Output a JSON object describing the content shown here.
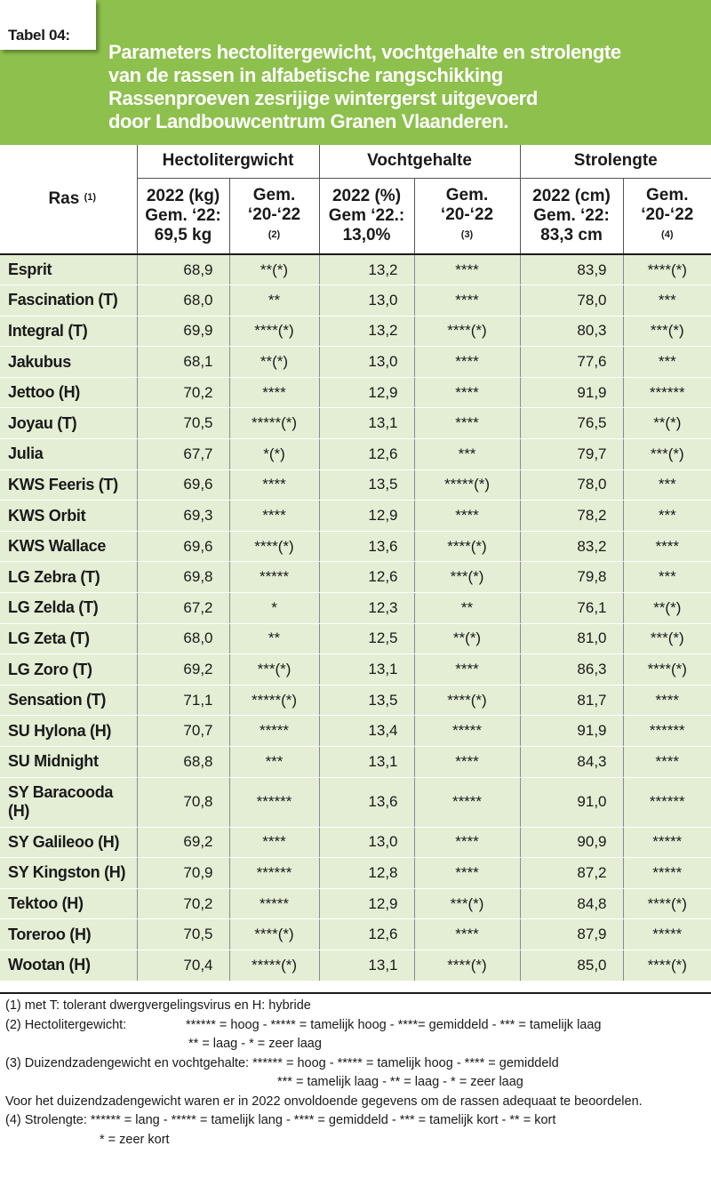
{
  "label": "Tabel 04:",
  "title_lines": [
    "Parameters hectolitergewicht, vochtgehalte en strolengte",
    "van de rassen in alfabetische rangschikking",
    "Rassenproeven zesrijige wintergerst uitgevoerd",
    "door Landbouwcentrum Granen Vlaanderen."
  ],
  "columns": {
    "ras": "Ras",
    "ras_note": "(1)",
    "group_hl": "Hectolitergwicht",
    "group_vocht": "Vochtgehalte",
    "group_stro": "Strolengte",
    "hl_2022_l1": "2022 (kg)",
    "hl_2022_l2": "Gem. ‘22:",
    "hl_2022_l3": "69,5 kg",
    "hl_gem_l1": "Gem.",
    "hl_gem_l2": "‘20-‘22",
    "hl_gem_note": "(2)",
    "v_2022_l1": "2022 (%)",
    "v_2022_l2": "Gem ‘22.:",
    "v_2022_l3": "13,0%",
    "v_gem_l1": "Gem.",
    "v_gem_l2": "‘20-‘22",
    "v_gem_note": "(3)",
    "s_2022_l1": "2022 (cm)",
    "s_2022_l2": "Gem. ‘22:",
    "s_2022_l3": "83,3 cm",
    "s_gem_l1": "Gem.",
    "s_gem_l2": "‘20-‘22",
    "s_gem_note": "(4)"
  },
  "rows": [
    {
      "name": "Esprit",
      "hl": "68,9",
      "hl_gem": "**(*)",
      "v": "13,2",
      "v_gem": "****",
      "s": "83,9",
      "s_gem": "****(*)"
    },
    {
      "name": "Fascination (T)",
      "hl": "68,0",
      "hl_gem": "**",
      "v": "13,0",
      "v_gem": "****",
      "s": "78,0",
      "s_gem": "***"
    },
    {
      "name": "Integral (T)",
      "hl": "69,9",
      "hl_gem": "****(*)",
      "v": "13,2",
      "v_gem": "****(*)",
      "s": "80,3",
      "s_gem": "***(*)"
    },
    {
      "name": "Jakubus",
      "hl": "68,1",
      "hl_gem": "**(*)",
      "v": "13,0",
      "v_gem": "****",
      "s": "77,6",
      "s_gem": "***"
    },
    {
      "name": "Jettoo (H)",
      "hl": "70,2",
      "hl_gem": "****",
      "v": "12,9",
      "v_gem": "****",
      "s": "91,9",
      "s_gem": "******"
    },
    {
      "name": "Joyau (T)",
      "hl": "70,5",
      "hl_gem": "*****(*)",
      "v": "13,1",
      "v_gem": "****",
      "s": "76,5",
      "s_gem": "**(*)"
    },
    {
      "name": "Julia",
      "hl": "67,7",
      "hl_gem": "*(*)",
      "v": "12,6",
      "v_gem": "***",
      "s": "79,7",
      "s_gem": "***(*)"
    },
    {
      "name": "KWS Feeris (T)",
      "hl": "69,6",
      "hl_gem": "****",
      "v": "13,5",
      "v_gem": "*****(*)",
      "s": "78,0",
      "s_gem": "***"
    },
    {
      "name": "KWS Orbit",
      "hl": "69,3",
      "hl_gem": "****",
      "v": "12,9",
      "v_gem": "****",
      "s": "78,2",
      "s_gem": "***"
    },
    {
      "name": "KWS Wallace",
      "hl": "69,6",
      "hl_gem": "****(*)",
      "v": "13,6",
      "v_gem": "****(*)",
      "s": "83,2",
      "s_gem": "****"
    },
    {
      "name": "LG Zebra (T)",
      "hl": "69,8",
      "hl_gem": "*****",
      "v": "12,6",
      "v_gem": "***(*)",
      "s": "79,8",
      "s_gem": "***"
    },
    {
      "name": "LG Zelda (T)",
      "hl": "67,2",
      "hl_gem": "*",
      "v": "12,3",
      "v_gem": "**",
      "s": "76,1",
      "s_gem": "**(*)"
    },
    {
      "name": "LG Zeta (T)",
      "hl": "68,0",
      "hl_gem": "**",
      "v": "12,5",
      "v_gem": "**(*)",
      "s": "81,0",
      "s_gem": "***(*)"
    },
    {
      "name": "LG Zoro (T)",
      "hl": "69,2",
      "hl_gem": "***(*)",
      "v": "13,1",
      "v_gem": "****",
      "s": "86,3",
      "s_gem": "****(*)"
    },
    {
      "name": "Sensation (T)",
      "hl": "71,1",
      "hl_gem": "*****(*)",
      "v": "13,5",
      "v_gem": "****(*)",
      "s": "81,7",
      "s_gem": "****"
    },
    {
      "name": "SU Hylona (H)",
      "hl": "70,7",
      "hl_gem": "*****",
      "v": "13,4",
      "v_gem": "*****",
      "s": "91,9",
      "s_gem": "******"
    },
    {
      "name": "SU Midnight",
      "hl": "68,8",
      "hl_gem": "***",
      "v": "13,1",
      "v_gem": "****",
      "s": "84,3",
      "s_gem": "****"
    },
    {
      "name": "SY Baracooda (H)",
      "hl": "70,8",
      "hl_gem": "******",
      "v": "13,6",
      "v_gem": "*****",
      "s": "91,0",
      "s_gem": "******"
    },
    {
      "name": "SY Galileoo (H)",
      "hl": "69,2",
      "hl_gem": "****",
      "v": "13,0",
      "v_gem": "****",
      "s": "90,9",
      "s_gem": "*****"
    },
    {
      "name": "SY Kingston (H)",
      "hl": "70,9",
      "hl_gem": "******",
      "v": "12,8",
      "v_gem": "****",
      "s": "87,2",
      "s_gem": "*****"
    },
    {
      "name": "Tektoo (H)",
      "hl": "70,2",
      "hl_gem": "*****",
      "v": "12,9",
      "v_gem": "***(*)",
      "s": "84,8",
      "s_gem": "****(*)"
    },
    {
      "name": "Toreroo (H)",
      "hl": "70,5",
      "hl_gem": "****(*)",
      "v": "12,6",
      "v_gem": "****",
      "s": "87,9",
      "s_gem": "*****"
    },
    {
      "name": "Wootan (H)",
      "hl": "70,4",
      "hl_gem": "*****(*)",
      "v": "13,1",
      "v_gem": "****(*)",
      "s": "85,0",
      "s_gem": "****(*)"
    }
  ],
  "notes": {
    "n1": "(1) met T: tolerant dwergvergelingsvirus en H: hybride",
    "n2_label": "(2) Hectolitergewicht:",
    "n2_a": "****** = hoog - ***** = tamelijk hoog - ****= gemiddeld - *** = tamelijk laag",
    "n2_b": "** = laag -  * = zeer laag",
    "n3_a": "(3) Duizendzadengewicht en vochtgehalte: ****** = hoog - ***** = tamelijk hoog - **** = gemiddeld",
    "n3_b": "*** = tamelijk laag - ** = laag - * = zeer laag",
    "n3_c": "Voor het duizendzadengewicht waren er in 2022 onvoldoende gegevens om de rassen adequaat te beoordelen.",
    "n4_a": "(4) Strolengte: ****** = lang - ***** = tamelijk lang - **** = gemiddeld - *** = tamelijk kort - ** = kort",
    "n4_b": "* = zeer kort"
  }
}
